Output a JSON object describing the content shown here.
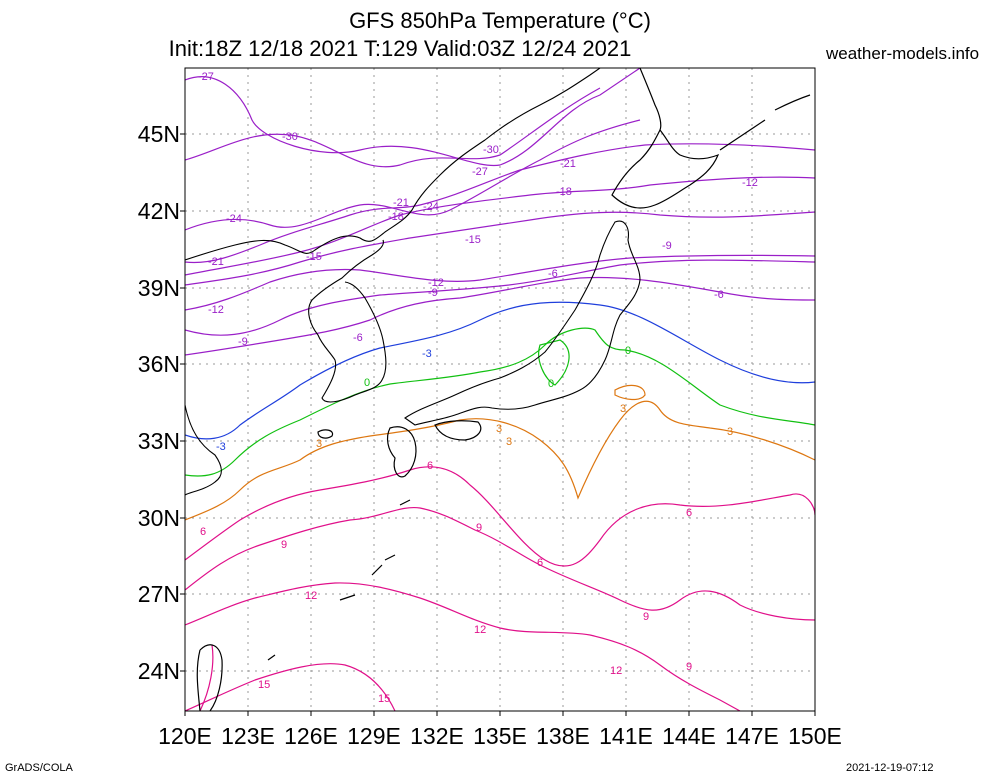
{
  "title_line1": "GFS 850hPa Temperature (°C)",
  "title_line2": "Init:18Z 12/18 2021 T:129 Valid:03Z 12/24 2021",
  "site": "weather-models.info",
  "footer_left": "GrADS/COLA",
  "footer_right": "2021-12-19-07:12",
  "map": {
    "lon_range": [
      120,
      150
    ],
    "lat_range": [
      22.5,
      47.5
    ],
    "lat_ticks": [
      "45N",
      "42N",
      "39N",
      "36N",
      "33N",
      "30N",
      "27N",
      "24N"
    ],
    "lon_ticks": [
      "120E",
      "123E",
      "126E",
      "129E",
      "132E",
      "135E",
      "138E",
      "141E",
      "144E",
      "147E",
      "150E"
    ],
    "contour_colors": {
      "-30": "#9a1fc8",
      "-27": "#9a1fc8",
      "-24": "#9a1fc8",
      "-21": "#9a1fc8",
      "-18": "#9a1fc8",
      "-15": "#9a1fc8",
      "-12": "#9a1fc8",
      "-9": "#9a1fc8",
      "-6": "#9a1fc8",
      "-3": "#1f3fdc",
      "0": "#11c011",
      "3": "#dd7711",
      "6": "#e0108a",
      "9": "#e0108a",
      "12": "#e0108a",
      "15": "#e0108a"
    },
    "contour_labels": [
      "-27",
      "-30",
      "-30",
      "-27",
      "-21",
      "-18",
      "-21",
      "-24",
      "-18",
      "-24",
      "-15",
      "-21",
      "-15",
      "-12",
      "-12",
      "-9",
      "-9",
      "-6",
      "-6",
      "-9",
      "-12",
      "-6",
      "-3",
      "-3",
      "0",
      "0",
      "0",
      "3",
      "3",
      "3",
      "3",
      "3",
      "6",
      "6",
      "9",
      "6",
      "6",
      "9",
      "12",
      "9",
      "12",
      "9",
      "12",
      "15",
      "15"
    ]
  }
}
